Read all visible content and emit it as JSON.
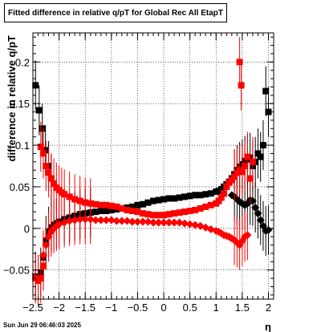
{
  "chart_data": {
    "type": "scatter",
    "title": "Fitted difference in relative q/pT for Global Rec All EtapT",
    "xlabel": "η",
    "ylabel": "difference in relative q/pT",
    "xlim": [
      -2.5,
      2.1
    ],
    "ylim": [
      -0.085,
      0.235
    ],
    "x_ticks": [
      -2.5,
      -2,
      -1.5,
      -1,
      -0.5,
      0,
      0.5,
      1,
      1.5,
      2
    ],
    "x_tick_labels": [
      "−2.5",
      "−2",
      "−1.5",
      "−1",
      "−0.5",
      "0",
      "0.5",
      "1",
      "1.5",
      "2"
    ],
    "y_ticks": [
      -0.05,
      0,
      0.05,
      0.1,
      0.15,
      0.2
    ],
    "y_tick_labels": [
      "−0.05",
      "0",
      "0.05",
      "0.1",
      "0.15",
      "0.2"
    ],
    "grid": true,
    "datestamp": "Sun Jun 29 06:46:03 2025",
    "series": [
      {
        "color": "#000000",
        "marker": "square",
        "points": [
          [
            -2.45,
            0.172
          ],
          [
            -2.38,
            0.142
          ],
          [
            -2.32,
            0.12
          ],
          [
            -2.26,
            0.094
          ],
          [
            -2.2,
            0.075
          ],
          [
            -2.15,
            0.06
          ],
          [
            -2.45,
            -0.058
          ],
          [
            -2.4,
            -0.062
          ],
          [
            -2.35,
            -0.053
          ],
          [
            -2.3,
            -0.035
          ],
          [
            -2.25,
            -0.015
          ],
          [
            -2.2,
            -0.004
          ],
          [
            -2.15,
            0.001
          ],
          [
            -2.1,
            0.004
          ],
          [
            -2.05,
            0.006
          ],
          [
            -2.0,
            0.008
          ],
          [
            -1.9,
            0.011
          ],
          [
            -1.8,
            0.013
          ],
          [
            -1.7,
            0.015
          ],
          [
            -1.6,
            0.017
          ],
          [
            -1.5,
            0.018
          ],
          [
            -1.4,
            0.019
          ],
          [
            -1.3,
            0.02
          ],
          [
            -1.2,
            0.021
          ],
          [
            -1.1,
            0.021
          ],
          [
            -1.0,
            0.022
          ],
          [
            -0.9,
            0.023
          ],
          [
            -0.8,
            0.024
          ],
          [
            -0.7,
            0.025
          ],
          [
            -0.6,
            0.026
          ],
          [
            -0.5,
            0.028
          ],
          [
            -0.4,
            0.029
          ],
          [
            -0.3,
            0.031
          ],
          [
            -0.2,
            0.033
          ],
          [
            -0.1,
            0.034
          ],
          [
            0.0,
            0.035
          ],
          [
            0.1,
            0.036
          ],
          [
            0.2,
            0.036
          ],
          [
            0.3,
            0.037
          ],
          [
            0.4,
            0.038
          ],
          [
            0.5,
            0.039
          ],
          [
            0.6,
            0.04
          ],
          [
            0.7,
            0.04
          ],
          [
            0.8,
            0.041
          ],
          [
            0.9,
            0.042
          ],
          [
            1.0,
            0.044
          ],
          [
            1.05,
            0.045
          ],
          [
            1.1,
            0.047
          ],
          [
            1.15,
            0.05
          ],
          [
            1.2,
            0.053
          ],
          [
            1.25,
            0.056
          ],
          [
            1.3,
            0.06
          ],
          [
            1.35,
            0.065
          ],
          [
            1.4,
            0.07
          ],
          [
            1.45,
            0.074
          ],
          [
            1.5,
            0.077
          ],
          [
            1.55,
            0.081
          ],
          [
            1.6,
            0.083
          ],
          [
            1.65,
            0.085
          ],
          [
            1.7,
            0.075
          ],
          [
            1.75,
            0.08
          ],
          [
            1.8,
            0.09
          ],
          [
            1.85,
            0.086
          ],
          [
            1.9,
            0.1
          ],
          [
            1.95,
            0.165
          ],
          [
            2.0,
            0.14
          ]
        ]
      },
      {
        "color": "#000000",
        "marker": "diamond",
        "points": [
          [
            1.3,
            0.04
          ],
          [
            1.35,
            0.038
          ],
          [
            1.4,
            0.035
          ],
          [
            1.45,
            0.032
          ],
          [
            1.5,
            0.03
          ],
          [
            1.55,
            0.028
          ],
          [
            1.6,
            0.03
          ],
          [
            1.65,
            0.034
          ],
          [
            1.7,
            0.033
          ],
          [
            1.75,
            0.025
          ],
          [
            1.8,
            0.018
          ],
          [
            1.85,
            0.01
          ],
          [
            1.9,
            0.003
          ],
          [
            1.95,
            -0.003
          ],
          [
            2.0,
            -0.002
          ]
        ]
      },
      {
        "color": "#ff0000",
        "marker": "square",
        "points": [
          [
            -2.45,
            -0.06
          ],
          [
            -2.4,
            -0.063
          ],
          [
            -2.35,
            -0.06
          ],
          [
            -2.3,
            -0.045
          ],
          [
            -2.35,
            0.098
          ],
          [
            -2.3,
            0.09
          ],
          [
            -2.25,
            0.075
          ],
          [
            -2.2,
            0.067
          ],
          [
            -2.15,
            0.06
          ],
          [
            -2.1,
            0.054
          ],
          [
            -2.05,
            0.049
          ],
          [
            -2.0,
            0.046
          ],
          [
            -1.95,
            0.043
          ],
          [
            -1.9,
            0.041
          ],
          [
            -1.8,
            0.038
          ],
          [
            -1.7,
            0.035
          ],
          [
            -1.6,
            0.033
          ],
          [
            -1.5,
            0.031
          ],
          [
            -1.4,
            0.03
          ],
          [
            -1.3,
            0.029
          ],
          [
            -1.2,
            0.028
          ],
          [
            -1.1,
            0.028
          ],
          [
            -1.0,
            0.027
          ],
          [
            -0.9,
            0.026
          ],
          [
            -0.8,
            0.024
          ],
          [
            -0.7,
            0.022
          ],
          [
            -0.6,
            0.021
          ],
          [
            -0.5,
            0.02
          ],
          [
            -0.4,
            0.018
          ],
          [
            -0.3,
            0.017
          ],
          [
            -0.2,
            0.016
          ],
          [
            -0.1,
            0.016
          ],
          [
            0.0,
            0.016
          ],
          [
            0.1,
            0.017
          ],
          [
            0.2,
            0.018
          ],
          [
            0.3,
            0.019
          ],
          [
            0.4,
            0.02
          ],
          [
            0.5,
            0.021
          ],
          [
            0.6,
            0.022
          ],
          [
            0.7,
            0.024
          ],
          [
            0.8,
            0.026
          ],
          [
            0.9,
            0.028
          ],
          [
            1.0,
            0.03
          ],
          [
            1.05,
            0.033
          ],
          [
            1.1,
            0.037
          ],
          [
            1.15,
            0.042
          ],
          [
            1.2,
            0.05
          ],
          [
            1.25,
            0.055
          ],
          [
            1.3,
            0.058
          ],
          [
            1.35,
            0.062
          ],
          [
            1.4,
            0.067
          ],
          [
            1.45,
            0.07
          ],
          [
            1.5,
            0.068
          ],
          [
            1.55,
            0.075
          ],
          [
            1.6,
            0.086
          ],
          [
            1.65,
            0.06
          ],
          [
            1.7,
            0.08
          ],
          [
            1.45,
            0.2
          ],
          [
            1.48,
            0.172
          ]
        ]
      },
      {
        "color": "#ff0000",
        "marker": "diamond",
        "points": [
          [
            -2.3,
            -0.032
          ],
          [
            -2.25,
            -0.02
          ],
          [
            -2.2,
            -0.01
          ],
          [
            -2.15,
            -0.004
          ],
          [
            -2.1,
            0.0
          ],
          [
            -2.05,
            0.003
          ],
          [
            -2.0,
            0.005
          ],
          [
            -1.9,
            0.007
          ],
          [
            -1.8,
            0.009
          ],
          [
            -1.7,
            0.01
          ],
          [
            -1.6,
            0.011
          ],
          [
            -1.5,
            0.011
          ],
          [
            -1.4,
            0.011
          ],
          [
            -1.3,
            0.01
          ],
          [
            -1.2,
            0.01
          ],
          [
            -1.1,
            0.01
          ],
          [
            -1.0,
            0.01
          ],
          [
            -0.9,
            0.009
          ],
          [
            -0.8,
            0.009
          ],
          [
            -0.7,
            0.009
          ],
          [
            -0.6,
            0.008
          ],
          [
            -0.5,
            0.008
          ],
          [
            -0.4,
            0.008
          ],
          [
            -0.3,
            0.008
          ],
          [
            -0.2,
            0.007
          ],
          [
            -0.1,
            0.007
          ],
          [
            0.0,
            0.007
          ],
          [
            0.1,
            0.007
          ],
          [
            0.2,
            0.007
          ],
          [
            0.3,
            0.007
          ],
          [
            0.4,
            0.006
          ],
          [
            0.5,
            0.005
          ],
          [
            0.6,
            0.004
          ],
          [
            0.7,
            0.003
          ],
          [
            0.8,
            0.001
          ],
          [
            0.9,
            -0.001
          ],
          [
            1.0,
            -0.003
          ],
          [
            1.05,
            -0.004
          ],
          [
            1.1,
            -0.006
          ],
          [
            1.15,
            -0.008
          ],
          [
            1.2,
            -0.009
          ],
          [
            1.25,
            -0.01
          ],
          [
            1.3,
            -0.012
          ],
          [
            1.35,
            -0.014
          ],
          [
            1.4,
            -0.017
          ],
          [
            1.45,
            -0.02
          ],
          [
            1.5,
            -0.015
          ],
          [
            1.55,
            -0.01
          ],
          [
            1.6,
            -0.008
          ]
        ]
      }
    ]
  }
}
